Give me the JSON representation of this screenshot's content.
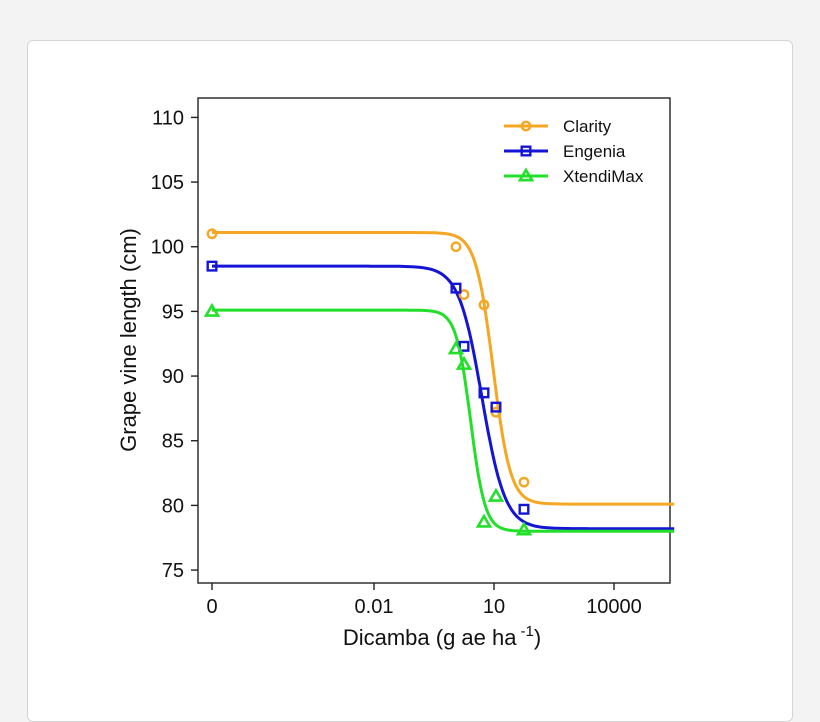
{
  "chart_data": {
    "type": "line",
    "title": "",
    "xlabel": "Dicamba (g ae ha",
    "xlabel_sup": "-1",
    "xlabel_close": ")",
    "ylabel": "Grape vine length (cm)",
    "x_scale": "log",
    "x_tick_labels": [
      "0",
      "0.01",
      "10",
      "10000"
    ],
    "y_ticks": [
      75,
      80,
      85,
      90,
      95,
      100,
      105,
      110
    ],
    "ylim": [
      74,
      111.5
    ],
    "legend_position": "top-right",
    "series": [
      {
        "name": "Clarity",
        "color": "#f5a623",
        "marker": "circle",
        "points": [
          {
            "x": "0",
            "y": 101
          },
          {
            "x": 1.12,
            "y": 100
          },
          {
            "x": 1.78,
            "y": 96.3
          },
          {
            "x": 5.62,
            "y": 95.5
          },
          {
            "x": 11.2,
            "y": 87.2
          },
          {
            "x": 56.2,
            "y": 81.8
          }
        ],
        "fit": {
          "upper": 101.1,
          "lower": 80.1,
          "ec50": 9.5,
          "slope": 2.0
        }
      },
      {
        "name": "Engenia",
        "color": "#1414d4",
        "marker": "square",
        "points": [
          {
            "x": "0",
            "y": 98.5
          },
          {
            "x": 1.12,
            "y": 96.8
          },
          {
            "x": 1.78,
            "y": 92.3
          },
          {
            "x": 5.62,
            "y": 88.7
          },
          {
            "x": 11.2,
            "y": 87.6
          },
          {
            "x": 56.2,
            "y": 79.7
          }
        ],
        "fit": {
          "upper": 98.5,
          "lower": 78.2,
          "ec50": 5.0,
          "slope": 1.5
        }
      },
      {
        "name": "XtendiMax",
        "color": "#22e02a",
        "marker": "triangle",
        "points": [
          {
            "x": "0",
            "y": 95
          },
          {
            "x": 1.12,
            "y": 92.1
          },
          {
            "x": 1.78,
            "y": 90.9
          },
          {
            "x": 5.62,
            "y": 78.7
          },
          {
            "x": 11.2,
            "y": 80.7
          },
          {
            "x": 56.2,
            "y": 78.1
          }
        ],
        "fit": {
          "upper": 95.1,
          "lower": 78.0,
          "ec50": 2.6,
          "slope": 2.4
        }
      }
    ]
  }
}
